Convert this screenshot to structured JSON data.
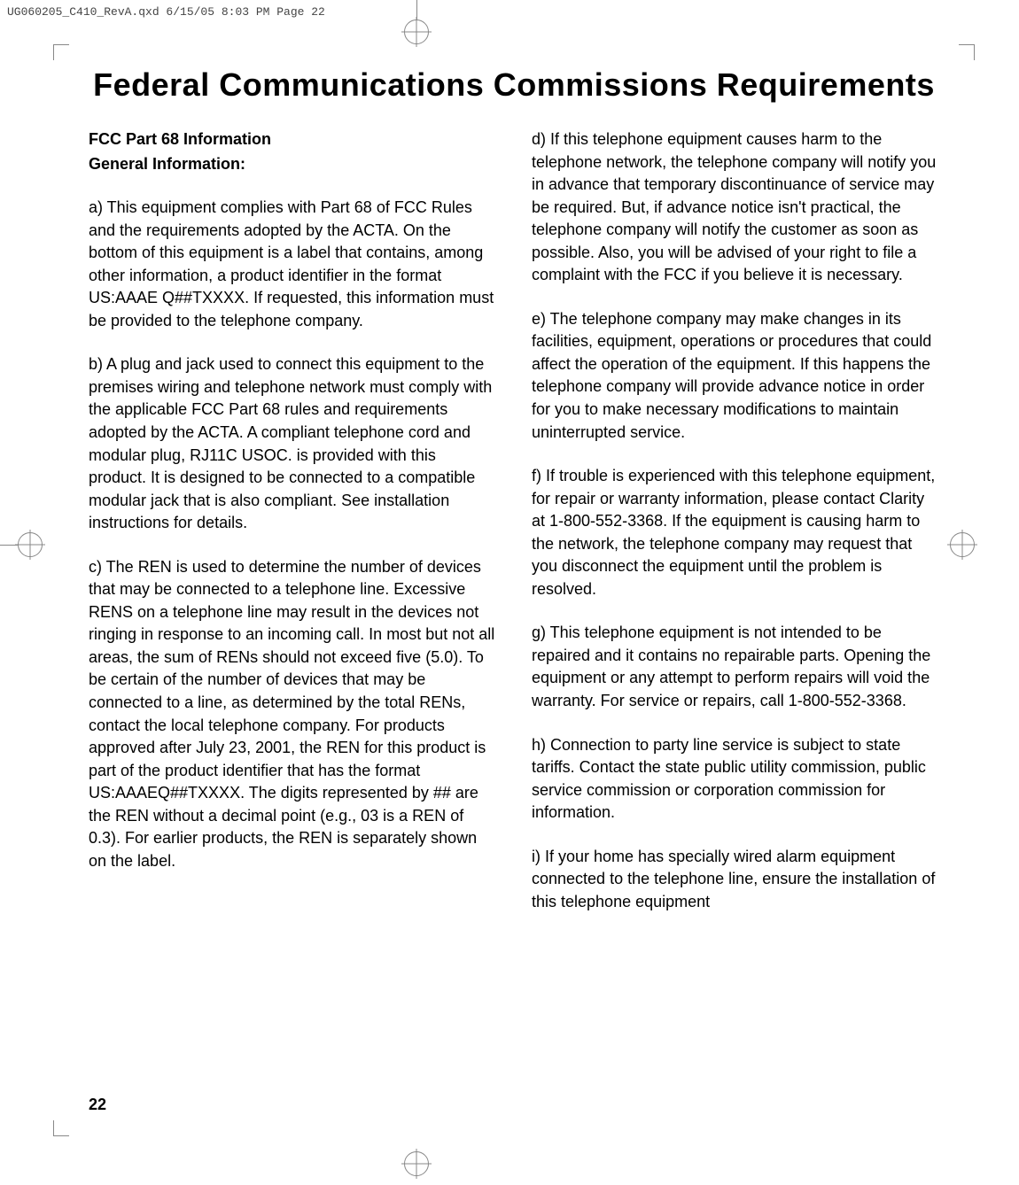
{
  "meta": {
    "filename_line": "UG060205_C410_RevA.qxd  6/15/05  8:03 PM  Page 22"
  },
  "title": "Federal Communications Commissions Requirements",
  "left": {
    "heading1": "FCC Part 68 Information",
    "heading2": "General Information:",
    "a": "a)  This equipment complies with Part 68 of FCC Rules and the requirements adopted by the ACTA. On the bottom of this equipment is a label that contains, among other information, a product identifier in the format US:AAAE Q##TXXXX. If requested, this information must be provided to the telephone company.",
    "b": "b)  A plug and jack used to connect this equipment to the premises wiring and telephone network must comply with the applicable FCC Part 68 rules and requirements adopted by the ACTA.  A compliant telephone cord and modular plug, RJ11C USOC. is provided with this product.  It is designed to be connected to a compatible modular jack that is also compliant.  See installation instructions for details.",
    "c": "c)  The REN is used to determine the number of devices that may be connected to a telephone line. Excessive RENS on a telephone line may result in the devices not ringing in response to an incoming call. In most but not all areas, the sum of RENs should not exceed five (5.0). To be certain of the number of devices that may be connected to a line, as determined by the total RENs, contact the local telephone company. For products approved after July 23, 2001, the REN for this product is part of the product identifier that has the format US:AAAEQ##TXXXX. The digits represented by ## are the REN without a decimal point (e.g., 03 is a REN of 0.3).  For earlier products, the REN is separately shown on the label."
  },
  "right": {
    "d": "d)  If this telephone equipment causes harm to the telephone network, the telephone company will notify you in advance that temporary discontinuance of service may be required. But, if advance notice isn't practical, the telephone company will notify the customer as soon as possible. Also, you will be advised of your right to file a complaint with the FCC if you believe it is necessary.",
    "e": "e)  The telephone company may make changes in its facilities, equipment, operations or procedures that could affect the operation of the equipment. If this happens the telephone  company will provide advance notice in order for you to make  necessary modifications to maintain uninterrupted service.",
    "f": "f)  If trouble is experienced with this telephone equipment, for repair or warranty information, please contact Clarity at 1-800-552-3368. If the equipment is causing harm to the network, the telephone company may request that you disconnect the equipment until the problem is resolved.",
    "g": "g)  This telephone equipment is not intended to be repaired and it contains no repairable parts. Opening the equipment or any attempt to perform repairs will void the warranty.  For service or repairs, call 1-800-552-3368.",
    "h": "h)  Connection to party line service is subject to state tariffs.  Contact the state public utility commission, public service commission or corporation commission for information.",
    "i": "i)  If your home has specially wired alarm equipment connected to the telephone line, ensure the installation of this telephone equipment"
  },
  "page_number": "22",
  "styles": {
    "title_fontsize": 36,
    "body_fontsize": 18,
    "heading_fontsize": 18,
    "line_height": 1.42,
    "text_color": "#000000",
    "background_color": "#ffffff",
    "crop_mark_color": "#888888",
    "header_info_color": "#444444"
  }
}
